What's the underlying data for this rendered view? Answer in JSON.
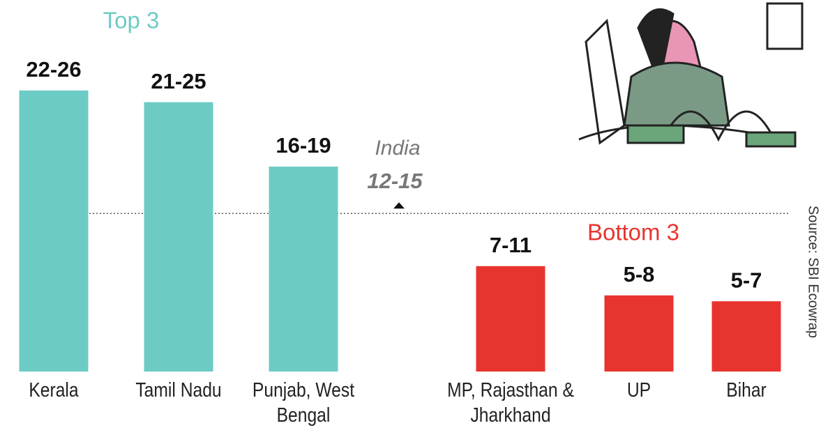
{
  "chart_data": {
    "type": "bar",
    "categories": [
      "Kerala",
      "Tamil Nadu",
      "Punjab, West Bengal",
      "MP, Rajasthan & Jharkhand",
      "UP",
      "Bihar"
    ],
    "values": [
      24,
      23,
      17.5,
      9,
      6.5,
      6
    ],
    "value_labels": [
      "22-26",
      "21-25",
      "16-19",
      "7-11",
      "5-8",
      "5-7"
    ],
    "colors": [
      "#6dcbc5",
      "#6dcbc5",
      "#6dcbc5",
      "#e8342f",
      "#e8342f",
      "#e8342f"
    ],
    "group_labels": [
      {
        "text": "Top 3",
        "color": "#6dcbc5"
      },
      {
        "text": "Bottom 3",
        "color": "#e8342f"
      }
    ],
    "reference": {
      "name": "India",
      "value": 13.5,
      "value_label": "12-15"
    },
    "ylim": [
      0,
      30
    ],
    "source": "Source: SBI Ecowrap"
  }
}
